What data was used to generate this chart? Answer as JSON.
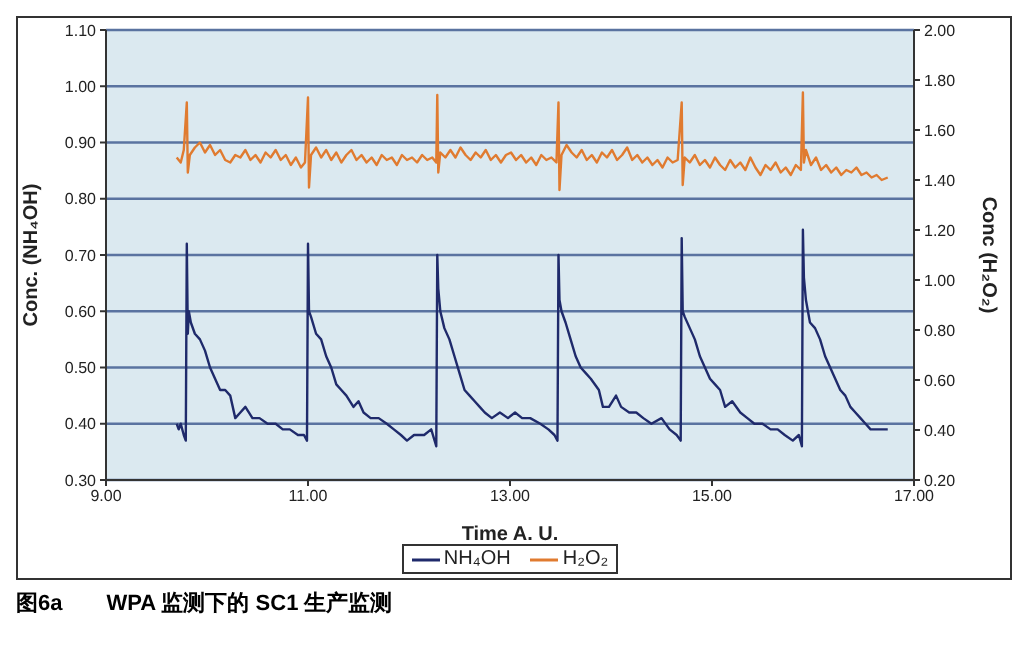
{
  "chart_data": {
    "type": "line",
    "xlabel": "Time A. U.",
    "ylabel": "Conc. (NH₄OH)",
    "y2label": "Conc (H₂O₂)",
    "xlim": [
      9,
      17
    ],
    "xticks": [
      {
        "value": 9,
        "label": "9.00"
      },
      {
        "value": 11,
        "label": "11.00"
      },
      {
        "value": 13,
        "label": "13.00"
      },
      {
        "value": 15,
        "label": "15.00"
      },
      {
        "value": 17,
        "label": "17.00"
      }
    ],
    "ylim": [
      0.3,
      1.1
    ],
    "yticks": [
      {
        "value": 0.3,
        "label": "0.30"
      },
      {
        "value": 0.4,
        "label": "0.40"
      },
      {
        "value": 0.5,
        "label": "0.50"
      },
      {
        "value": 0.6,
        "label": "0.60"
      },
      {
        "value": 0.7,
        "label": "0.70"
      },
      {
        "value": 0.8,
        "label": "0.80"
      },
      {
        "value": 0.9,
        "label": "0.90"
      },
      {
        "value": 1.0,
        "label": "1.00"
      },
      {
        "value": 1.1,
        "label": "1.10"
      }
    ],
    "y2lim": [
      0.2,
      2.0
    ],
    "y2ticks": [
      {
        "value": 0.2,
        "label": "0.20"
      },
      {
        "value": 0.4,
        "label": "0.40"
      },
      {
        "value": 0.6,
        "label": "0.60"
      },
      {
        "value": 0.8,
        "label": "0.80"
      },
      {
        "value": 1.0,
        "label": "1.00"
      },
      {
        "value": 1.2,
        "label": "1.20"
      },
      {
        "value": 1.4,
        "label": "1.40"
      },
      {
        "value": 1.6,
        "label": "1.60"
      },
      {
        "value": 1.8,
        "label": "1.80"
      },
      {
        "value": 2.0,
        "label": "2.00"
      }
    ],
    "grid": "y",
    "legend": "bottom",
    "marker": "none",
    "line_style": "solid",
    "series": [
      {
        "name": "NH₄OH",
        "color": "#1f2a6b",
        "x": [
          9.7,
          9.72,
          9.74,
          9.77,
          9.79,
          9.8,
          9.81,
          9.82,
          9.84,
          9.88,
          9.93,
          9.98,
          10.03,
          10.08,
          10.13,
          10.18,
          10.23,
          10.28,
          10.33,
          10.38,
          10.45,
          10.52,
          10.6,
          10.68,
          10.75,
          10.82,
          10.9,
          10.96,
          10.99,
          11.0,
          11.01,
          11.03,
          11.08,
          11.13,
          11.18,
          11.23,
          11.28,
          11.33,
          11.38,
          11.45,
          11.5,
          11.55,
          11.62,
          11.7,
          11.78,
          11.85,
          11.92,
          11.98,
          12.05,
          12.15,
          12.22,
          12.27,
          12.28,
          12.29,
          12.31,
          12.35,
          12.4,
          12.45,
          12.5,
          12.55,
          12.6,
          12.65,
          12.7,
          12.75,
          12.82,
          12.9,
          12.98,
          13.05,
          13.12,
          13.2,
          13.3,
          13.38,
          13.44,
          13.47,
          13.48,
          13.49,
          13.51,
          13.55,
          13.6,
          13.65,
          13.7,
          13.75,
          13.8,
          13.88,
          13.92,
          13.98,
          14.05,
          14.1,
          14.18,
          14.25,
          14.32,
          14.4,
          14.5,
          14.58,
          14.65,
          14.69,
          14.7,
          14.71,
          14.73,
          14.78,
          14.83,
          14.88,
          14.93,
          14.98,
          15.03,
          15.08,
          15.13,
          15.2,
          15.28,
          15.35,
          15.42,
          15.5,
          15.58,
          15.65,
          15.72,
          15.8,
          15.86,
          15.89,
          15.9,
          15.91,
          15.93,
          15.97,
          16.02,
          16.07,
          16.12,
          16.17,
          16.22,
          16.27,
          16.32,
          16.37,
          16.42,
          16.47,
          16.52,
          16.57,
          16.62,
          16.68,
          16.74
        ],
        "values": [
          0.4,
          0.39,
          0.4,
          0.38,
          0.37,
          0.72,
          0.56,
          0.6,
          0.58,
          0.56,
          0.55,
          0.53,
          0.5,
          0.48,
          0.46,
          0.46,
          0.45,
          0.41,
          0.42,
          0.43,
          0.41,
          0.41,
          0.4,
          0.4,
          0.39,
          0.39,
          0.38,
          0.38,
          0.37,
          0.72,
          0.6,
          0.59,
          0.56,
          0.55,
          0.52,
          0.5,
          0.47,
          0.46,
          0.45,
          0.43,
          0.44,
          0.42,
          0.41,
          0.41,
          0.4,
          0.39,
          0.38,
          0.37,
          0.38,
          0.38,
          0.39,
          0.36,
          0.7,
          0.64,
          0.6,
          0.57,
          0.55,
          0.52,
          0.49,
          0.46,
          0.45,
          0.44,
          0.43,
          0.42,
          0.41,
          0.42,
          0.41,
          0.42,
          0.41,
          0.41,
          0.4,
          0.39,
          0.38,
          0.37,
          0.7,
          0.62,
          0.6,
          0.58,
          0.55,
          0.52,
          0.5,
          0.49,
          0.48,
          0.46,
          0.43,
          0.43,
          0.45,
          0.43,
          0.42,
          0.42,
          0.41,
          0.4,
          0.41,
          0.39,
          0.38,
          0.37,
          0.73,
          0.6,
          0.59,
          0.57,
          0.55,
          0.52,
          0.5,
          0.48,
          0.47,
          0.46,
          0.43,
          0.44,
          0.42,
          0.41,
          0.4,
          0.4,
          0.39,
          0.39,
          0.38,
          0.37,
          0.38,
          0.36,
          0.745,
          0.66,
          0.62,
          0.58,
          0.57,
          0.55,
          0.52,
          0.5,
          0.48,
          0.46,
          0.45,
          0.43,
          0.42,
          0.41,
          0.4,
          0.39,
          0.39,
          0.39,
          0.39
        ]
      },
      {
        "name": "H₂O₂",
        "color": "#e07b30",
        "axis": "y2",
        "x": [
          9.7,
          9.74,
          9.77,
          9.8,
          9.81,
          9.83,
          9.88,
          9.93,
          9.98,
          10.03,
          10.08,
          10.13,
          10.18,
          10.23,
          10.28,
          10.33,
          10.38,
          10.43,
          10.48,
          10.53,
          10.58,
          10.63,
          10.68,
          10.73,
          10.78,
          10.83,
          10.88,
          10.93,
          10.97,
          11.0,
          11.01,
          11.03,
          11.08,
          11.13,
          11.18,
          11.23,
          11.28,
          11.33,
          11.38,
          11.43,
          11.48,
          11.53,
          11.58,
          11.63,
          11.68,
          11.73,
          11.78,
          11.83,
          11.88,
          11.93,
          11.98,
          12.03,
          12.08,
          12.13,
          12.18,
          12.23,
          12.27,
          12.28,
          12.29,
          12.31,
          12.36,
          12.41,
          12.46,
          12.51,
          12.56,
          12.61,
          12.66,
          12.71,
          12.76,
          12.81,
          12.86,
          12.91,
          12.96,
          13.01,
          13.06,
          13.11,
          13.16,
          13.21,
          13.26,
          13.31,
          13.36,
          13.41,
          13.46,
          13.48,
          13.49,
          13.51,
          13.56,
          13.61,
          13.66,
          13.71,
          13.76,
          13.81,
          13.86,
          13.91,
          13.96,
          14.01,
          14.06,
          14.11,
          14.16,
          14.21,
          14.26,
          14.31,
          14.36,
          14.41,
          14.46,
          14.51,
          14.56,
          14.61,
          14.66,
          14.7,
          14.71,
          14.73,
          14.78,
          14.83,
          14.88,
          14.93,
          14.98,
          15.03,
          15.08,
          15.13,
          15.18,
          15.23,
          15.28,
          15.33,
          15.38,
          15.43,
          15.48,
          15.53,
          15.58,
          15.63,
          15.68,
          15.73,
          15.78,
          15.83,
          15.88,
          15.9,
          15.91,
          15.93,
          15.98,
          16.03,
          16.08,
          16.13,
          16.18,
          16.23,
          16.28,
          16.33,
          16.38,
          16.43,
          16.48,
          16.53,
          16.58,
          16.63,
          16.68,
          16.74
        ],
        "values": [
          1.49,
          1.47,
          1.52,
          1.71,
          1.43,
          1.5,
          1.53,
          1.55,
          1.51,
          1.54,
          1.5,
          1.52,
          1.48,
          1.47,
          1.5,
          1.49,
          1.52,
          1.48,
          1.5,
          1.47,
          1.51,
          1.49,
          1.52,
          1.48,
          1.5,
          1.46,
          1.49,
          1.45,
          1.47,
          1.73,
          1.37,
          1.5,
          1.53,
          1.49,
          1.52,
          1.48,
          1.51,
          1.47,
          1.5,
          1.52,
          1.48,
          1.5,
          1.47,
          1.49,
          1.46,
          1.5,
          1.48,
          1.49,
          1.46,
          1.5,
          1.48,
          1.49,
          1.47,
          1.5,
          1.48,
          1.49,
          1.47,
          1.74,
          1.43,
          1.51,
          1.49,
          1.52,
          1.49,
          1.53,
          1.5,
          1.48,
          1.51,
          1.49,
          1.52,
          1.48,
          1.5,
          1.47,
          1.5,
          1.51,
          1.48,
          1.5,
          1.47,
          1.49,
          1.46,
          1.5,
          1.48,
          1.49,
          1.47,
          1.71,
          1.36,
          1.5,
          1.54,
          1.51,
          1.49,
          1.52,
          1.48,
          1.5,
          1.47,
          1.51,
          1.49,
          1.52,
          1.48,
          1.5,
          1.53,
          1.48,
          1.5,
          1.47,
          1.49,
          1.46,
          1.48,
          1.45,
          1.49,
          1.47,
          1.48,
          1.71,
          1.38,
          1.49,
          1.47,
          1.5,
          1.46,
          1.48,
          1.45,
          1.49,
          1.46,
          1.44,
          1.48,
          1.45,
          1.47,
          1.44,
          1.49,
          1.45,
          1.42,
          1.46,
          1.44,
          1.47,
          1.43,
          1.45,
          1.42,
          1.46,
          1.44,
          1.75,
          1.47,
          1.52,
          1.46,
          1.49,
          1.44,
          1.46,
          1.43,
          1.45,
          1.42,
          1.44,
          1.43,
          1.45,
          1.42,
          1.43,
          1.41,
          1.42,
          1.4,
          1.41
        ]
      }
    ],
    "annotations": [
      "图6a　　WPA 监测下的 SC1 生产监测"
    ]
  }
}
